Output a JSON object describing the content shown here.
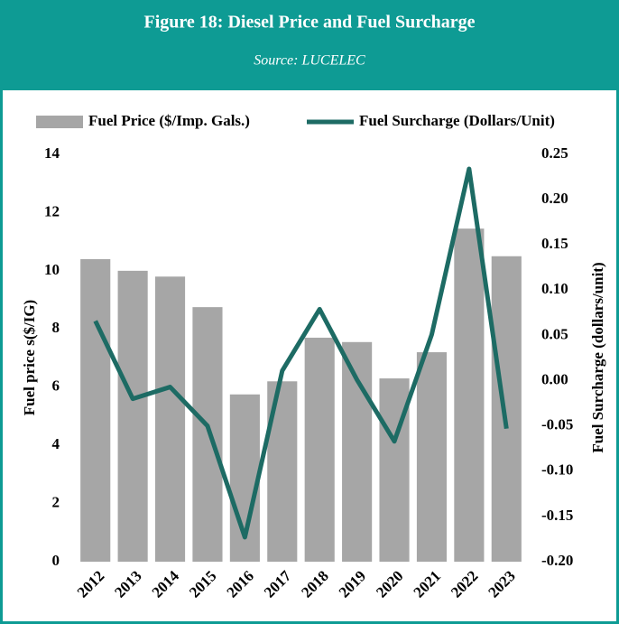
{
  "chart_data": {
    "type": "bar-line",
    "title": "Figure 18: Diesel Price and Fuel Surcharge",
    "subtitle": "Source: LUCELEC",
    "categories": [
      "2012",
      "2013",
      "2014",
      "2015",
      "2016",
      "2017",
      "2018",
      "2019",
      "2020",
      "2021",
      "2022",
      "2023"
    ],
    "series": [
      {
        "name": "Fuel Price ($/Imp. Gals.)",
        "type": "bar",
        "color": "#a6a6a6",
        "values": [
          10.4,
          10.0,
          9.8,
          8.75,
          5.75,
          6.2,
          7.7,
          7.55,
          6.3,
          7.2,
          11.45,
          10.5
        ]
      },
      {
        "name": "Fuel Surcharge (Dollars/Unit)",
        "type": "line",
        "axis": "y2",
        "color": "#1d6b64",
        "values": [
          0.066,
          -0.02,
          -0.007,
          -0.05,
          -0.173,
          0.011,
          0.079,
          0.001,
          -0.067,
          0.051,
          0.234,
          -0.053
        ]
      }
    ],
    "y_label": "Fuel price s($/IG)",
    "y2_label": "Fuel Surcharge (dollars/unit)",
    "ylim": [
      0,
      14
    ],
    "yticks": [
      0,
      2,
      4,
      6,
      8,
      10,
      12,
      14
    ],
    "y2lim": [
      -0.2,
      0.25
    ],
    "y2ticks": [
      {
        "value": -0.2,
        "label": "-0.20"
      },
      -0.15,
      {
        "value": -0.1,
        "label": "-0.10"
      },
      -0.05,
      {
        "value": 0,
        "label": "0.00"
      },
      0.05,
      {
        "value": 0.1,
        "label": "0.10"
      },
      0.15,
      {
        "value": 0.2,
        "label": "0.20"
      },
      0.25
    ],
    "legend": "top",
    "grid": false
  }
}
